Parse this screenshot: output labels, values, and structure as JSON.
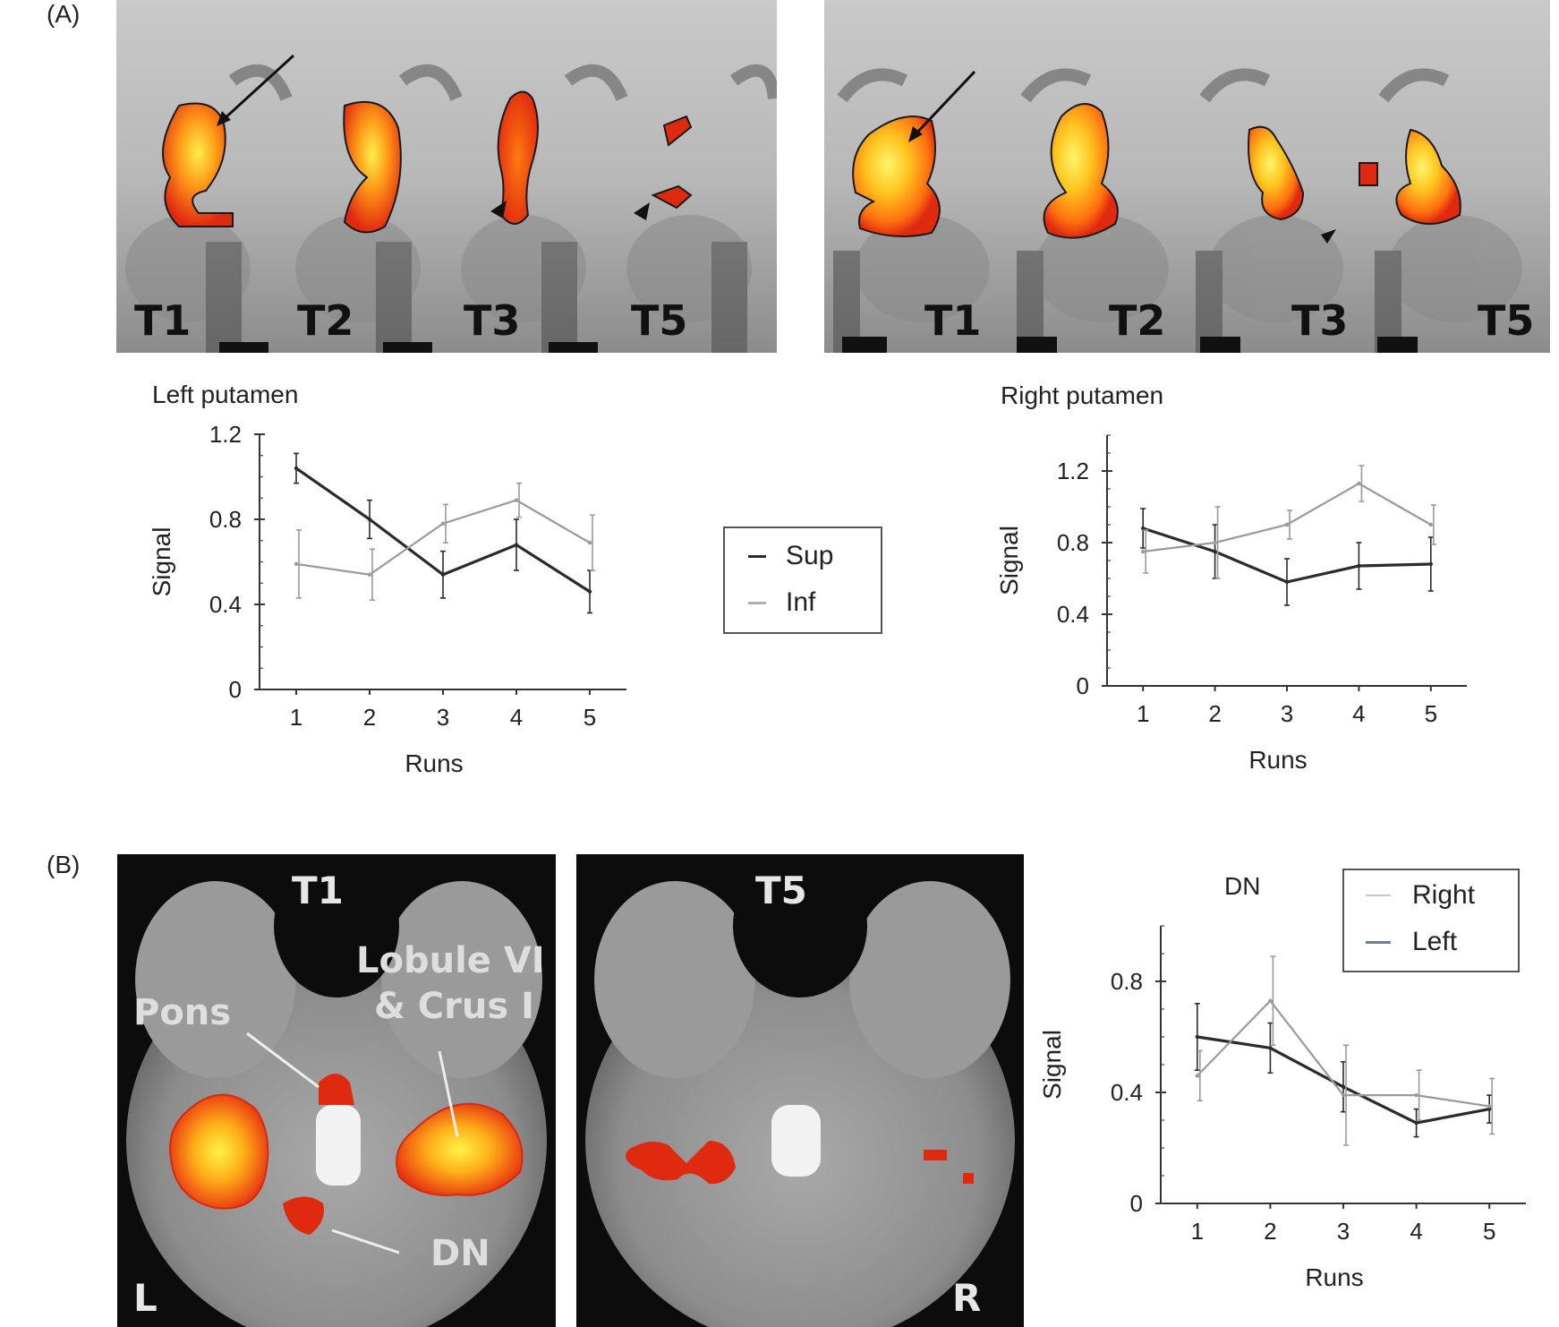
{
  "panel_a": {
    "label": "(A)"
  },
  "panel_b": {
    "label": "(B)"
  },
  "mri_left": {
    "captions": [
      "T1",
      "T2",
      "T3",
      "T5"
    ]
  },
  "mri_right": {
    "captions": [
      "T1",
      "T2",
      "T3",
      "T5"
    ]
  },
  "axial": {
    "left_caption": "T1",
    "right_caption": "T5",
    "labels": {
      "pons": "Pons",
      "lobule_line1": "Lobule VI",
      "lobule_line2": "& Crus I",
      "dn": "DN",
      "left_side": "L",
      "right_side": "R"
    }
  },
  "legend_a": {
    "entries": [
      "Sup",
      "Inf"
    ]
  },
  "colors": {
    "dark_series": "#2b2b2b",
    "light_series": "#9a9a9a",
    "activation_hot": "#ffe23a",
    "activation_mid": "#ff7a10",
    "activation_edge": "#e02510"
  },
  "chart_data": [
    {
      "type": "line",
      "title": "Left putamen",
      "xlabel": "Runs",
      "ylabel": "Signal",
      "x": [
        1,
        2,
        3,
        4,
        5
      ],
      "xlim": [
        0.5,
        5.5
      ],
      "ylim": [
        0,
        1.2
      ],
      "yticks": [
        "0",
        "0.4",
        "0.8",
        "1.2"
      ],
      "series": [
        {
          "name": "Sup",
          "values": [
            1.04,
            0.8,
            0.54,
            0.68,
            0.46
          ],
          "err": [
            0.07,
            0.09,
            0.11,
            0.12,
            0.1
          ]
        },
        {
          "name": "Inf",
          "values": [
            0.59,
            0.54,
            0.78,
            0.89,
            0.69
          ],
          "err": [
            0.16,
            0.12,
            0.09,
            0.08,
            0.13
          ]
        }
      ]
    },
    {
      "type": "line",
      "title": "Right putamen",
      "xlabel": "Runs",
      "ylabel": "Signal",
      "x": [
        1,
        2,
        3,
        4,
        5
      ],
      "xlim": [
        0.5,
        5.5
      ],
      "ylim": [
        0,
        1.4
      ],
      "yticks": [
        "0",
        "0.4",
        "0.8",
        "1.2"
      ],
      "series": [
        {
          "name": "Sup",
          "values": [
            0.88,
            0.75,
            0.58,
            0.67,
            0.68
          ],
          "err": [
            0.11,
            0.15,
            0.13,
            0.13,
            0.15
          ]
        },
        {
          "name": "Inf",
          "values": [
            0.75,
            0.8,
            0.9,
            1.13,
            0.9
          ],
          "err": [
            0.12,
            0.2,
            0.08,
            0.1,
            0.11
          ]
        }
      ]
    },
    {
      "type": "line",
      "title": "DN",
      "xlabel": "Runs",
      "ylabel": "Signal",
      "x": [
        1,
        2,
        3,
        4,
        5
      ],
      "xlim": [
        0.5,
        5.5
      ],
      "ylim": [
        0,
        1.0
      ],
      "yticks": [
        "0",
        "0.4",
        "0.8"
      ],
      "legend": "top-right",
      "series": [
        {
          "name": "Right",
          "values": [
            0.6,
            0.56,
            0.42,
            0.29,
            0.34
          ],
          "err": [
            0.12,
            0.09,
            0.09,
            0.05,
            0.05
          ]
        },
        {
          "name": "Left",
          "values": [
            0.46,
            0.73,
            0.39,
            0.39,
            0.35
          ],
          "err": [
            0.09,
            0.16,
            0.18,
            0.09,
            0.1
          ]
        }
      ]
    }
  ]
}
